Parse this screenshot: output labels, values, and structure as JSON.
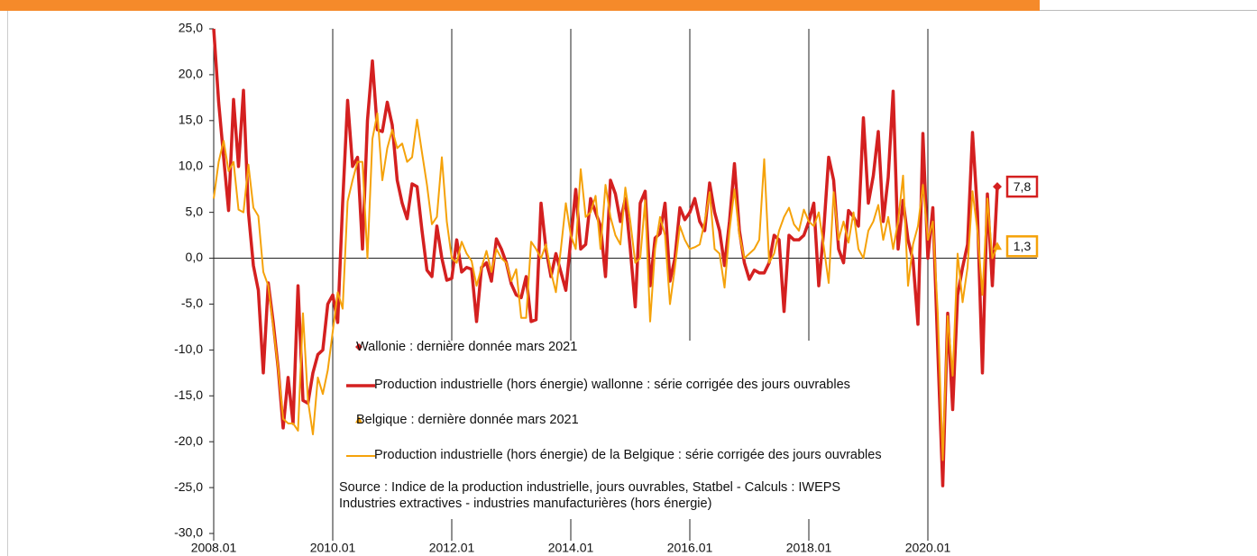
{
  "chart_data": {
    "type": "line",
    "x": [
      "2008.01",
      "2008.02",
      "2008.03",
      "2008.04",
      "2008.05",
      "2008.06",
      "2008.07",
      "2008.08",
      "2008.09",
      "2008.10",
      "2008.11",
      "2008.12",
      "2009.01",
      "2009.02",
      "2009.03",
      "2009.04",
      "2009.05",
      "2009.06",
      "2009.07",
      "2009.08",
      "2009.09",
      "2009.10",
      "2009.11",
      "2009.12",
      "2010.01",
      "2010.02",
      "2010.03",
      "2010.04",
      "2010.05",
      "2010.06",
      "2010.07",
      "2010.08",
      "2010.09",
      "2010.10",
      "2010.11",
      "2010.12",
      "2011.01",
      "2011.02",
      "2011.03",
      "2011.04",
      "2011.05",
      "2011.06",
      "2011.07",
      "2011.08",
      "2011.09",
      "2011.10",
      "2011.11",
      "2011.12",
      "2012.01",
      "2012.02",
      "2012.03",
      "2012.04",
      "2012.05",
      "2012.06",
      "2012.07",
      "2012.08",
      "2012.09",
      "2012.10",
      "2012.11",
      "2012.12",
      "2013.01",
      "2013.02",
      "2013.03",
      "2013.04",
      "2013.05",
      "2013.06",
      "2013.07",
      "2013.08",
      "2013.09",
      "2013.10",
      "2013.11",
      "2013.12",
      "2014.01",
      "2014.02",
      "2014.03",
      "2014.04",
      "2014.05",
      "2014.06",
      "2014.07",
      "2014.08",
      "2014.09",
      "2014.10",
      "2014.11",
      "2014.12",
      "2015.01",
      "2015.02",
      "2015.03",
      "2015.04",
      "2015.05",
      "2015.06",
      "2015.07",
      "2015.08",
      "2015.09",
      "2015.10",
      "2015.11",
      "2015.12",
      "2016.01",
      "2016.02",
      "2016.03",
      "2016.04",
      "2016.05",
      "2016.06",
      "2016.07",
      "2016.08",
      "2016.09",
      "2016.10",
      "2016.11",
      "2016.12",
      "2017.01",
      "2017.02",
      "2017.03",
      "2017.04",
      "2017.05",
      "2017.06",
      "2017.07",
      "2017.08",
      "2017.09",
      "2017.10",
      "2017.11",
      "2017.12",
      "2018.01",
      "2018.02",
      "2018.03",
      "2018.04",
      "2018.05",
      "2018.06",
      "2018.07",
      "2018.08",
      "2018.09",
      "2018.10",
      "2018.11",
      "2018.12",
      "2019.01",
      "2019.02",
      "2019.03",
      "2019.04",
      "2019.05",
      "2019.06",
      "2019.07",
      "2019.08",
      "2019.09",
      "2019.10",
      "2019.11",
      "2019.12",
      "2020.01",
      "2020.02",
      "2020.03",
      "2020.04",
      "2020.05",
      "2020.06",
      "2020.07",
      "2020.08",
      "2020.09",
      "2020.10",
      "2020.11",
      "2020.12",
      "2021.01",
      "2021.02",
      "2021.03"
    ],
    "xticks": [
      "2008.01",
      "2010.01",
      "2012.01",
      "2014.01",
      "2016.01",
      "2018.01",
      "2020.01"
    ],
    "ylim": [
      -30,
      25
    ],
    "yticks": [
      {
        "value": -30,
        "label": "-30,0"
      },
      {
        "value": -25,
        "label": "-25,0"
      },
      {
        "value": -20,
        "label": "-20,0"
      },
      {
        "value": -15,
        "label": "-15,0"
      },
      {
        "value": -10,
        "label": "-10,0"
      },
      {
        "value": -5,
        "label": "-5,0"
      },
      {
        "value": 0,
        "label": "0,0"
      },
      {
        "value": 5,
        "label": "5,0"
      },
      {
        "value": 10,
        "label": "10,0"
      },
      {
        "value": 15,
        "label": "15,0"
      },
      {
        "value": 20,
        "label": "20,0"
      },
      {
        "value": 25,
        "label": "25,0"
      }
    ],
    "x_grid": true,
    "series": [
      {
        "name": "Wallonie : dernière donnée mars 2021",
        "marker": "diamond",
        "color": "#d42020",
        "x": [
          "2021.03"
        ],
        "values": [
          7.8
        ],
        "value_labels": [
          "7,8"
        ]
      },
      {
        "name": "Production  industrielle (hors énergie) wallonne : série corrigée des jours ouvrables",
        "color": "#d42020",
        "line_width": 3.5,
        "values": [
          25,
          17,
          11,
          5.2,
          17.3,
          10,
          18.3,
          5,
          -0.8,
          -3.5,
          -12.5,
          -2.7,
          -7,
          -12,
          -18.5,
          -13,
          -18,
          -3,
          -15.5,
          -15.8,
          -12.5,
          -10.5,
          -10,
          -5,
          -4,
          -7,
          6,
          17.2,
          10,
          11,
          1,
          15,
          21.5,
          14,
          13.8,
          17,
          14.5,
          8.5,
          6,
          4.3,
          8.1,
          7.8,
          3,
          -1.3,
          -2,
          3.5,
          0,
          -2.4,
          -2.2,
          2,
          -1.5,
          -1,
          -1.2,
          -6.9,
          -1,
          -0.5,
          -2.5,
          2.1,
          1,
          -0.5,
          -2.8,
          -4,
          -4.3,
          -2,
          -6.9,
          -6.7,
          6,
          1,
          -2,
          0.5,
          -1.5,
          -3.5,
          2,
          7.5,
          1,
          1.5,
          6.5,
          5,
          3.5,
          -2,
          8.5,
          7,
          4,
          6.5,
          1,
          -5.3,
          6,
          7.3,
          -3,
          2.2,
          2.7,
          6,
          -2.5,
          0,
          5.5,
          4.2,
          5,
          6.5,
          4,
          3,
          8.2,
          5,
          3,
          -0.8,
          4,
          10.3,
          3,
          -0.5,
          -2.3,
          -1.3,
          -1.6,
          -1.6,
          -0.5,
          2.5,
          2,
          -5.8,
          2.5,
          2,
          2,
          2.5,
          4,
          6,
          -3,
          3,
          11,
          8.5,
          1,
          -0.5,
          5.2,
          4.5,
          3.5,
          15.3,
          6,
          9,
          13.8,
          4,
          8.8,
          18.2,
          1,
          6.3,
          2,
          -0.2,
          -7.2,
          13.6,
          0,
          5.5,
          -10,
          -24.8,
          -6,
          -16.5,
          -4,
          -1,
          1.5,
          13.7,
          5,
          -12.5,
          7,
          -3,
          7.8
        ]
      },
      {
        "name": "Belgique : dernière donnée mars 2021",
        "marker": "triangle",
        "color": "#f5a20a",
        "x": [
          "2021.03"
        ],
        "values": [
          1.3
        ],
        "value_labels": [
          "1,3"
        ]
      },
      {
        "name": "Production industrielle (hors énergie) de la Belgique : série corrigée des jours ouvrables",
        "color": "#f5a20a",
        "line_width": 2,
        "values": [
          6.5,
          10.5,
          12.8,
          9.5,
          10.5,
          5.3,
          5,
          10.2,
          5.5,
          4.6,
          -1.5,
          -3,
          -7.5,
          -12,
          -17.5,
          -18,
          -18,
          -18.8,
          -6,
          -15.5,
          -19.2,
          -13,
          -14.8,
          -12.2,
          -8,
          -3.7,
          -5.5,
          6.2,
          8.5,
          10.5,
          10.5,
          0,
          13,
          15.8,
          8.5,
          12,
          14,
          12,
          12.5,
          10.5,
          11,
          15.1,
          11.5,
          8,
          3.7,
          4.5,
          11,
          4,
          0,
          -0.5,
          1.8,
          0.5,
          -0.3,
          -3,
          -1,
          0.8,
          -1.5,
          1,
          0,
          -0.5,
          -2.5,
          -1.2,
          -6.5,
          -6.5,
          1.8,
          1,
          0,
          1.5,
          -1.5,
          -3.7,
          1,
          6,
          2.5,
          1,
          9.7,
          4.5,
          5,
          6.8,
          1,
          8,
          4.5,
          2.5,
          1.5,
          7.7,
          4,
          -0.5,
          0,
          6.3,
          -6.9,
          1,
          4.5,
          2.5,
          -5,
          -1,
          3.5,
          2,
          1,
          1.2,
          1.5,
          4,
          7.2,
          1,
          0.5,
          -3.2,
          3,
          7.5,
          2.5,
          0,
          0.5,
          1,
          2,
          10.8,
          -0.5,
          0.5,
          3,
          4.5,
          5.5,
          3.7,
          3,
          5.3,
          4,
          3.5,
          5,
          1.3,
          -2.7,
          7.2,
          2,
          4,
          1.7,
          5,
          1,
          0,
          3,
          4,
          5.8,
          2,
          4.5,
          1,
          4,
          9,
          -3,
          1.5,
          3.5,
          8,
          2,
          4,
          -6,
          -22,
          -6.3,
          -12.8,
          0.5,
          -4.8,
          -1,
          7.3,
          3,
          -4,
          6.5,
          0,
          1.3
        ]
      }
    ],
    "notes": [
      "Source : Indice de la production industrielle, jours ouvrables, Statbel - Calculs : IWEPS",
      "Industries extractives - industries manufacturières (hors énergie)"
    ]
  }
}
